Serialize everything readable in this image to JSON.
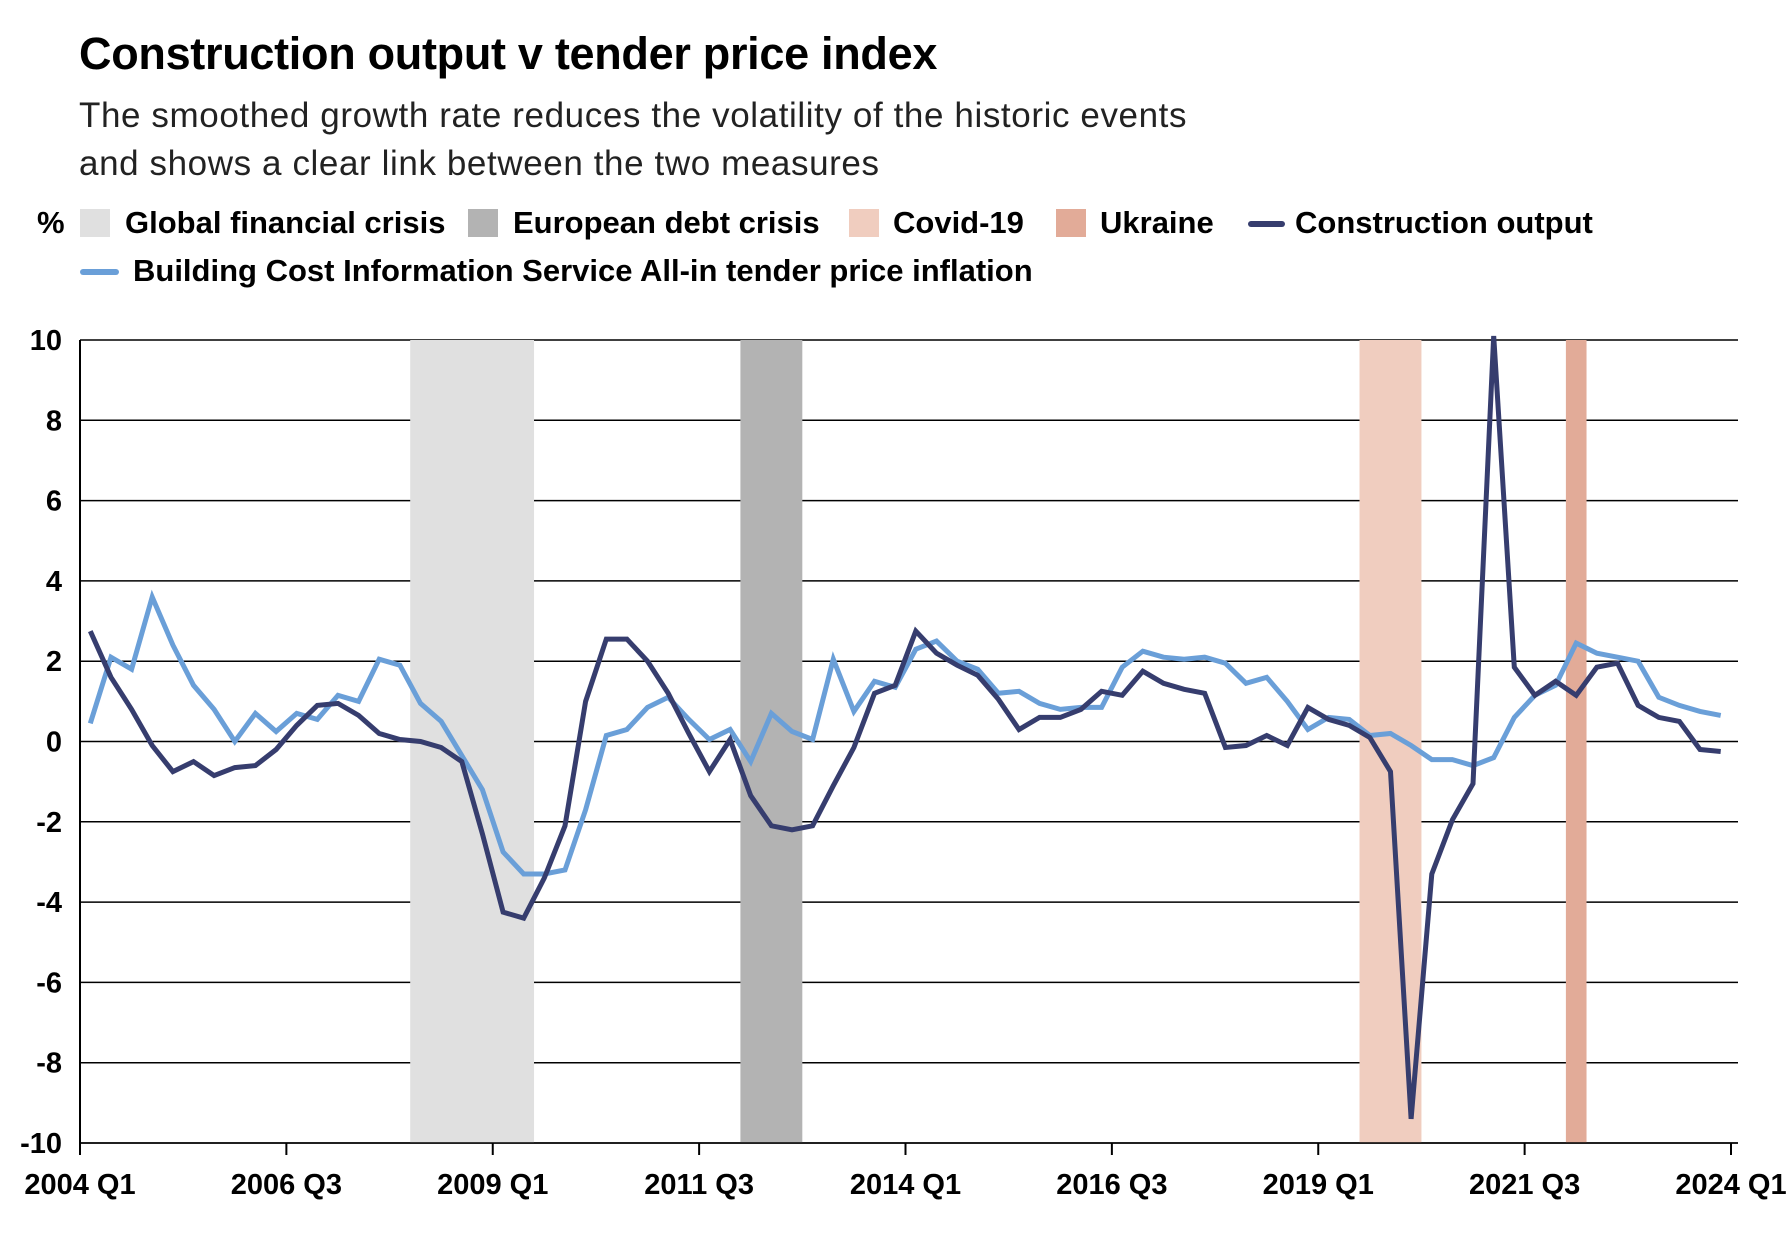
{
  "chart_data": {
    "type": "line",
    "title": "Construction output v tender price index",
    "subtitle_lines": [
      "The smoothed growth rate reduces the volatility of the historic events",
      "and shows a clear link between the two measures"
    ],
    "ylabel": "%",
    "ylim": [
      -10,
      10
    ],
    "yticks": [
      10,
      8,
      6,
      4,
      2,
      0,
      -2,
      -4,
      -6,
      -8,
      -10
    ],
    "xrange": [
      "2004 Q1",
      "2024 Q1"
    ],
    "xticks": [
      "2004 Q1",
      "2006 Q3",
      "2009 Q1",
      "2011 Q3",
      "2014 Q1",
      "2016 Q3",
      "2019 Q1",
      "2021 Q3",
      "2024 Q1"
    ],
    "grid": "horizontal",
    "legend_position": "top",
    "bands": [
      {
        "name": "Global financial crisis",
        "start": "2008 Q1",
        "end": "2009 Q2",
        "color": "#e0e0e0"
      },
      {
        "name": "European debt crisis",
        "start": "2012 Q1",
        "end": "2012 Q3",
        "color": "#b3b3b3"
      },
      {
        "name": "Covid-19",
        "start": "2019 Q3",
        "end": "2020 Q1",
        "color": "#f0cdbf"
      },
      {
        "name": "Ukraine",
        "start": "2022 Q1",
        "end": "2022 Q1",
        "color": "#e2ab98"
      }
    ],
    "x_start": "2004 Q1",
    "series": [
      {
        "name": "Construction output",
        "color": "#363d6e",
        "values": [
          2.75,
          1.6,
          0.8,
          -0.1,
          -0.75,
          -0.5,
          -0.85,
          -0.65,
          -0.6,
          -0.2,
          0.4,
          0.9,
          0.95,
          0.65,
          0.2,
          0.05,
          0.0,
          -0.15,
          -0.5,
          -2.3,
          -4.25,
          -4.4,
          -3.4,
          -2.1,
          1.0,
          2.55,
          2.55,
          2.0,
          1.2,
          0.2,
          -0.75,
          0.05,
          -1.35,
          -2.1,
          -2.2,
          -2.1,
          -1.1,
          -0.15,
          1.2,
          1.4,
          2.75,
          2.2,
          1.9,
          1.65,
          1.05,
          0.3,
          0.6,
          0.6,
          0.8,
          1.25,
          1.15,
          1.75,
          1.45,
          1.3,
          1.2,
          -0.15,
          -0.1,
          0.15,
          -0.1,
          0.85,
          0.55,
          0.4,
          0.1,
          -0.75,
          -9.4,
          -3.3,
          -1.95,
          -1.05,
          10.1,
          1.85,
          1.15,
          1.5,
          1.15,
          1.85,
          1.95,
          0.9,
          0.6,
          0.5,
          -0.2,
          -0.25
        ]
      },
      {
        "name": "Building Cost Information Service All-in tender price inflation",
        "color": "#6a9fd8",
        "values": [
          0.45,
          2.1,
          1.8,
          3.6,
          2.4,
          1.4,
          0.8,
          0.0,
          0.7,
          0.25,
          0.7,
          0.55,
          1.15,
          1.0,
          2.05,
          1.9,
          0.95,
          0.5,
          -0.35,
          -1.2,
          -2.75,
          -3.3,
          -3.3,
          -3.2,
          -1.7,
          0.15,
          0.3,
          0.85,
          1.1,
          0.55,
          0.05,
          0.3,
          -0.5,
          0.7,
          0.25,
          0.05,
          2.05,
          0.75,
          1.5,
          1.35,
          2.3,
          2.5,
          2.0,
          1.8,
          1.2,
          1.25,
          0.95,
          0.8,
          0.85,
          0.85,
          1.85,
          2.25,
          2.1,
          2.05,
          2.1,
          1.95,
          1.45,
          1.6,
          1.0,
          0.3,
          0.6,
          0.55,
          0.15,
          0.2,
          -0.1,
          -0.45,
          -0.45,
          -0.6,
          -0.4,
          0.6,
          1.15,
          1.4,
          2.45,
          2.2,
          2.1,
          2.0,
          1.1,
          0.9,
          0.75,
          0.65
        ]
      }
    ]
  }
}
